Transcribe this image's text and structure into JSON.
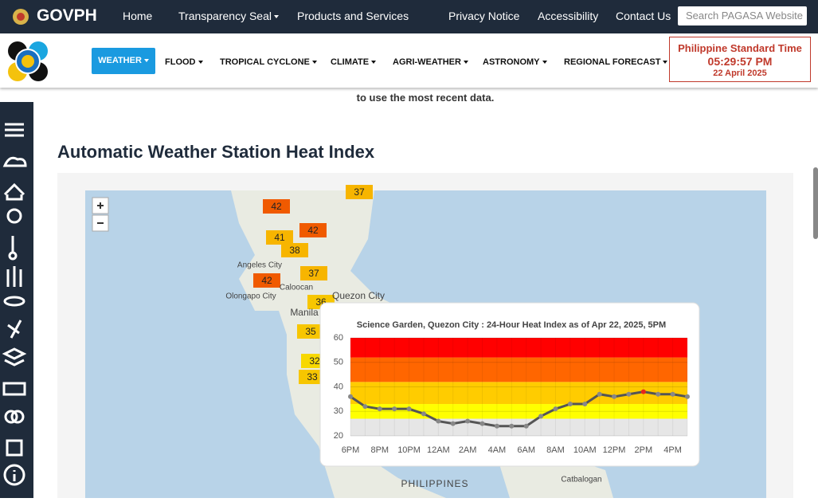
{
  "header": {
    "brand": "GOVPH",
    "nav": [
      "Home",
      "Transparency Seal",
      "Products and Services",
      "Privacy Notice",
      "Accessibility",
      "Contact Us"
    ],
    "search_placeholder": "Search PAGASA Website"
  },
  "menu": {
    "items": [
      "WEATHER",
      "FLOOD",
      "TROPICAL CYCLONE",
      "CLIMATE",
      "AGRI-WEATHER",
      "ASTRONOMY",
      "REGIONAL FORECAST"
    ]
  },
  "clock": {
    "label": "Philippine Standard Time",
    "time": "05:29:57 PM",
    "date": "22 April 2025"
  },
  "notice": "to use the most recent data.",
  "heading": "Automatic Weather Station Heat Index",
  "map": {
    "places": [
      "Angeles City",
      "Olongapo City",
      "Caloocan",
      "Quezon City",
      "Manila",
      "PHILIPPINES",
      "Catbalogan"
    ],
    "markers": [
      {
        "value": 37,
        "color": "#f7b500"
      },
      {
        "value": 42,
        "color": "#f05a00"
      },
      {
        "value": 42,
        "color": "#f05a00"
      },
      {
        "value": 41,
        "color": "#f7b500"
      },
      {
        "value": 38,
        "color": "#f7b500"
      },
      {
        "value": 37,
        "color": "#f7b500"
      },
      {
        "value": 42,
        "color": "#f05a00"
      },
      {
        "value": 36,
        "color": "#f7c600"
      },
      {
        "value": 35,
        "color": "#f7c600"
      },
      {
        "value": 32,
        "color": "#f7d800"
      },
      {
        "value": 33,
        "color": "#f7c600"
      }
    ]
  },
  "chart_data": {
    "type": "line",
    "title": "Science Garden, Quezon City : 24-Hour Heat Index as of Apr 22, 2025, 5PM",
    "categories": [
      "6PM",
      null,
      "8PM",
      null,
      "10PM",
      null,
      "12AM",
      null,
      "2AM",
      null,
      "4AM",
      null,
      "6AM",
      null,
      "8AM",
      null,
      "10AM",
      null,
      "12PM",
      null,
      "2PM",
      null,
      "4PM",
      null
    ],
    "series": [
      {
        "color": "#555555",
        "values": [
          36,
          32,
          31,
          31,
          31,
          29,
          26,
          25,
          26,
          25,
          24,
          24,
          24,
          28,
          31,
          33,
          33,
          37,
          36,
          37,
          38,
          37,
          37,
          36
        ]
      }
    ],
    "highlight_color": "#e8261b",
    "ylim": [
      20,
      60
    ],
    "yticks": [
      20,
      30,
      40,
      50,
      60
    ],
    "bands": [
      {
        "from": 20,
        "to": 27,
        "color": "#e6e6e6"
      },
      {
        "from": 27,
        "to": 33,
        "color": "#ffff00"
      },
      {
        "from": 33,
        "to": 42,
        "color": "#ffcc00"
      },
      {
        "from": 42,
        "to": 52,
        "color": "#ff6600"
      },
      {
        "from": 52,
        "to": 60,
        "color": "#ff0000"
      }
    ],
    "grid": true
  }
}
